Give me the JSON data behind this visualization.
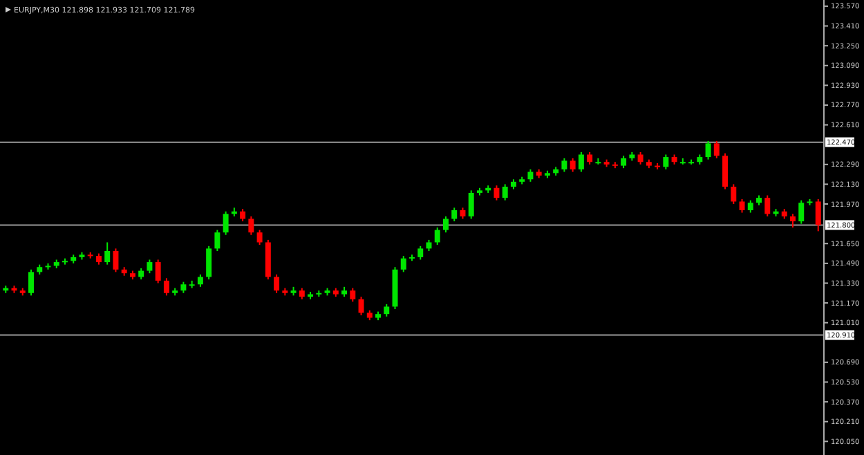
{
  "chart_data": {
    "type": "candlestick",
    "title": "EURJPY,M30  121.898 121.933 121.709 121.789",
    "categories": [
      null,
      null,
      null,
      null,
      null,
      null,
      null,
      null,
      null,
      null,
      null,
      null,
      null,
      null,
      null,
      null,
      null,
      null,
      null,
      null,
      null,
      null,
      null,
      null,
      null,
      null,
      null,
      null,
      null,
      null,
      null,
      null,
      null,
      null,
      null,
      null,
      null,
      null,
      null,
      null,
      null,
      null,
      null,
      null,
      null,
      null,
      null,
      null,
      null,
      null,
      null,
      null,
      null,
      null,
      null,
      null,
      null,
      null,
      null,
      null,
      null,
      null,
      null,
      null,
      null,
      null,
      null,
      null,
      null,
      null,
      null,
      null,
      null,
      null,
      null,
      null,
      null,
      null,
      null,
      null,
      null,
      null,
      null,
      null,
      null,
      null,
      null,
      null,
      null,
      null,
      null,
      null,
      null,
      null,
      null,
      null,
      null
    ],
    "ohlc": [
      [
        121.27,
        121.31,
        121.25,
        121.29
      ],
      [
        121.29,
        121.31,
        121.25,
        121.27
      ],
      [
        121.27,
        121.29,
        121.23,
        121.25
      ],
      [
        121.25,
        121.44,
        121.23,
        121.42
      ],
      [
        121.42,
        121.48,
        121.4,
        121.46
      ],
      [
        121.46,
        121.49,
        121.44,
        121.47
      ],
      [
        121.47,
        121.52,
        121.45,
        121.5
      ],
      [
        121.5,
        121.53,
        121.48,
        121.51
      ],
      [
        121.51,
        121.56,
        121.49,
        121.54
      ],
      [
        121.54,
        121.58,
        121.52,
        121.56
      ],
      [
        121.56,
        121.58,
        121.53,
        121.55
      ],
      [
        121.55,
        121.57,
        121.48,
        121.5
      ],
      [
        121.5,
        121.66,
        121.48,
        121.59
      ],
      [
        121.59,
        121.61,
        121.42,
        121.44
      ],
      [
        121.44,
        121.46,
        121.39,
        121.41
      ],
      [
        121.41,
        121.43,
        121.36,
        121.38
      ],
      [
        121.38,
        121.45,
        121.36,
        121.43
      ],
      [
        121.43,
        121.52,
        121.41,
        121.5
      ],
      [
        121.5,
        121.52,
        121.33,
        121.35
      ],
      [
        121.35,
        121.37,
        121.23,
        121.25
      ],
      [
        121.25,
        121.29,
        121.23,
        121.27
      ],
      [
        121.27,
        121.34,
        121.25,
        121.32
      ],
      [
        121.32,
        121.35,
        121.29,
        121.32
      ],
      [
        121.32,
        121.4,
        121.3,
        121.38
      ],
      [
        121.38,
        121.63,
        121.36,
        121.61
      ],
      [
        121.61,
        121.76,
        121.59,
        121.74
      ],
      [
        121.74,
        121.91,
        121.72,
        121.89
      ],
      [
        121.89,
        121.94,
        121.87,
        121.91
      ],
      [
        121.91,
        121.93,
        121.83,
        121.85
      ],
      [
        121.85,
        121.87,
        121.72,
        121.74
      ],
      [
        121.74,
        121.76,
        121.64,
        121.66
      ],
      [
        121.66,
        121.68,
        121.36,
        121.38
      ],
      [
        121.38,
        121.4,
        121.25,
        121.27
      ],
      [
        121.27,
        121.29,
        121.23,
        121.25
      ],
      [
        121.25,
        121.3,
        121.23,
        121.27
      ],
      [
        121.27,
        121.29,
        121.2,
        121.22
      ],
      [
        121.22,
        121.26,
        121.2,
        121.24
      ],
      [
        121.24,
        121.27,
        121.22,
        121.25
      ],
      [
        121.25,
        121.29,
        121.23,
        121.27
      ],
      [
        121.27,
        121.29,
        121.22,
        121.24
      ],
      [
        121.24,
        121.3,
        121.22,
        121.27
      ],
      [
        121.27,
        121.29,
        121.18,
        121.2
      ],
      [
        121.2,
        121.22,
        121.07,
        121.09
      ],
      [
        121.09,
        121.11,
        121.03,
        121.05
      ],
      [
        121.05,
        121.1,
        121.03,
        121.08
      ],
      [
        121.08,
        121.16,
        121.06,
        121.14
      ],
      [
        121.14,
        121.46,
        121.12,
        121.44
      ],
      [
        121.44,
        121.55,
        121.42,
        121.53
      ],
      [
        121.53,
        121.56,
        121.51,
        121.54
      ],
      [
        121.54,
        121.63,
        121.52,
        121.61
      ],
      [
        121.61,
        121.68,
        121.59,
        121.66
      ],
      [
        121.66,
        121.78,
        121.64,
        121.76
      ],
      [
        121.76,
        121.87,
        121.74,
        121.85
      ],
      [
        121.85,
        121.94,
        121.83,
        121.92
      ],
      [
        121.92,
        121.94,
        121.85,
        121.87
      ],
      [
        121.87,
        122.08,
        121.85,
        122.06
      ],
      [
        122.06,
        122.1,
        122.04,
        122.08
      ],
      [
        122.08,
        122.12,
        122.06,
        122.1
      ],
      [
        122.1,
        122.12,
        122.0,
        122.02
      ],
      [
        122.02,
        122.13,
        122.0,
        122.11
      ],
      [
        122.11,
        122.17,
        122.09,
        122.15
      ],
      [
        122.15,
        122.19,
        122.13,
        122.17
      ],
      [
        122.17,
        122.25,
        122.15,
        122.23
      ],
      [
        122.23,
        122.25,
        122.18,
        122.2
      ],
      [
        122.2,
        122.24,
        122.18,
        122.22
      ],
      [
        122.22,
        122.27,
        122.2,
        122.25
      ],
      [
        122.25,
        122.34,
        122.23,
        122.32
      ],
      [
        122.32,
        122.34,
        122.23,
        122.25
      ],
      [
        122.25,
        122.39,
        122.23,
        122.37
      ],
      [
        122.37,
        122.39,
        122.29,
        122.31
      ],
      [
        122.31,
        122.34,
        122.29,
        122.31
      ],
      [
        122.31,
        122.33,
        122.27,
        122.29
      ],
      [
        122.29,
        122.31,
        122.26,
        122.28
      ],
      [
        122.28,
        122.36,
        122.26,
        122.34
      ],
      [
        122.34,
        122.39,
        122.32,
        122.37
      ],
      [
        122.37,
        122.39,
        122.29,
        122.31
      ],
      [
        122.31,
        122.33,
        122.26,
        122.28
      ],
      [
        122.28,
        122.3,
        122.25,
        122.27
      ],
      [
        122.27,
        122.37,
        122.25,
        122.35
      ],
      [
        122.35,
        122.37,
        122.29,
        122.31
      ],
      [
        122.31,
        122.34,
        122.29,
        122.31
      ],
      [
        122.31,
        122.33,
        122.29,
        122.31
      ],
      [
        122.31,
        122.37,
        122.29,
        122.35
      ],
      [
        122.35,
        122.48,
        122.33,
        122.46
      ],
      [
        122.46,
        122.48,
        122.34,
        122.36
      ],
      [
        122.36,
        122.38,
        122.09,
        122.11
      ],
      [
        122.11,
        122.13,
        121.97,
        121.99
      ],
      [
        121.99,
        122.01,
        121.9,
        121.92
      ],
      [
        121.92,
        122.0,
        121.9,
        121.98
      ],
      [
        121.98,
        122.04,
        121.96,
        122.02
      ],
      [
        122.02,
        122.04,
        121.87,
        121.89
      ],
      [
        121.89,
        121.93,
        121.87,
        121.91
      ],
      [
        121.91,
        121.93,
        121.85,
        121.87
      ],
      [
        121.87,
        121.89,
        121.78,
        121.83
      ],
      [
        121.83,
        122.0,
        121.81,
        121.98
      ],
      [
        121.98,
        122.01,
        121.96,
        121.99
      ],
      [
        121.99,
        122.01,
        121.75,
        121.8
      ]
    ],
    "ylim": [
      119.94,
      123.62
    ],
    "yticks": [
      {
        "value": 123.57,
        "label": "123.570"
      },
      {
        "value": 123.41,
        "label": "123.410"
      },
      {
        "value": 123.25,
        "label": "123.250"
      },
      {
        "value": 123.09,
        "label": "123.090"
      },
      {
        "value": 122.93,
        "label": "122.930"
      },
      {
        "value": 122.77,
        "label": "122.770"
      },
      {
        "value": 122.61,
        "label": "122.610"
      },
      {
        "value": 122.29,
        "label": "122.290"
      },
      {
        "value": 122.13,
        "label": "122.130"
      },
      {
        "value": 121.97,
        "label": "121.970"
      },
      {
        "value": 121.65,
        "label": "121.650"
      },
      {
        "value": 121.49,
        "label": "121.490"
      },
      {
        "value": 121.33,
        "label": "121.330"
      },
      {
        "value": 121.17,
        "label": "121.170"
      },
      {
        "value": 121.01,
        "label": "121.010"
      },
      {
        "value": 120.69,
        "label": "120.690"
      },
      {
        "value": 120.53,
        "label": "120.530"
      },
      {
        "value": 120.37,
        "label": "120.370"
      },
      {
        "value": 120.21,
        "label": "120.210"
      },
      {
        "value": 120.05,
        "label": "120.050"
      }
    ],
    "ref_lines": [
      {
        "axis": "y",
        "value": 122.47,
        "label": "122.470",
        "color": "#9a9a9a"
      },
      {
        "axis": "y",
        "value": 121.8,
        "label": "121.800",
        "color": "#9a9a9a"
      },
      {
        "axis": "y",
        "value": 120.91,
        "label": "120.910",
        "color": "#9a9a9a"
      }
    ],
    "grid": false
  }
}
